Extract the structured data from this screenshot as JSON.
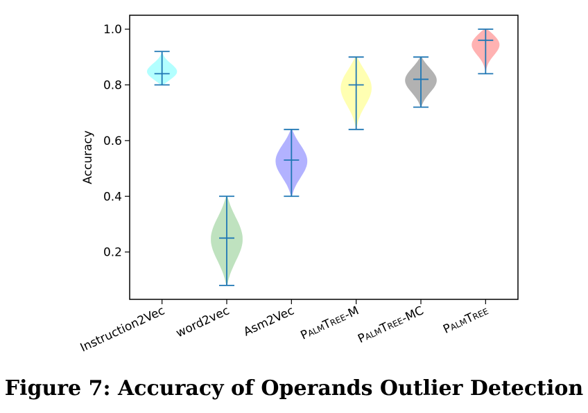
{
  "caption": "Figure 7: Accuracy of Operands Outlier Detection",
  "chart_data": {
    "type": "violin",
    "title": "",
    "xlabel": "",
    "ylabel": "Accuracy",
    "ylim": [
      0.03,
      1.05
    ],
    "yticks": [
      "0.2",
      "0.4",
      "0.6",
      "0.8",
      "1.0"
    ],
    "ytick_values": [
      0.2,
      0.4,
      0.6,
      0.8,
      1.0
    ],
    "grid": false,
    "categories": [
      "Instruction2Vec",
      "word2vec",
      "Asm2Vec",
      "PalmTree-M",
      "PalmTree-MC",
      "PalmTree"
    ],
    "series": [
      {
        "category": "Instruction2Vec",
        "min": 0.8,
        "median": 0.84,
        "max": 0.92,
        "color": "#00ffff"
      },
      {
        "category": "word2vec",
        "min": 0.08,
        "median": 0.25,
        "max": 0.4,
        "color": "#2ca02c"
      },
      {
        "category": "Asm2Vec",
        "min": 0.4,
        "median": 0.53,
        "max": 0.64,
        "color": "#0000ff"
      },
      {
        "category": "PalmTree-M",
        "min": 0.64,
        "median": 0.8,
        "max": 0.9,
        "color": "#ffff00"
      },
      {
        "category": "PalmTree-MC",
        "min": 0.72,
        "median": 0.82,
        "max": 0.9,
        "color": "#000000"
      },
      {
        "category": "PalmTree",
        "min": 0.84,
        "median": 0.96,
        "max": 1.0,
        "color": "#ff0000"
      }
    ],
    "line_color": "#1f77b4"
  }
}
